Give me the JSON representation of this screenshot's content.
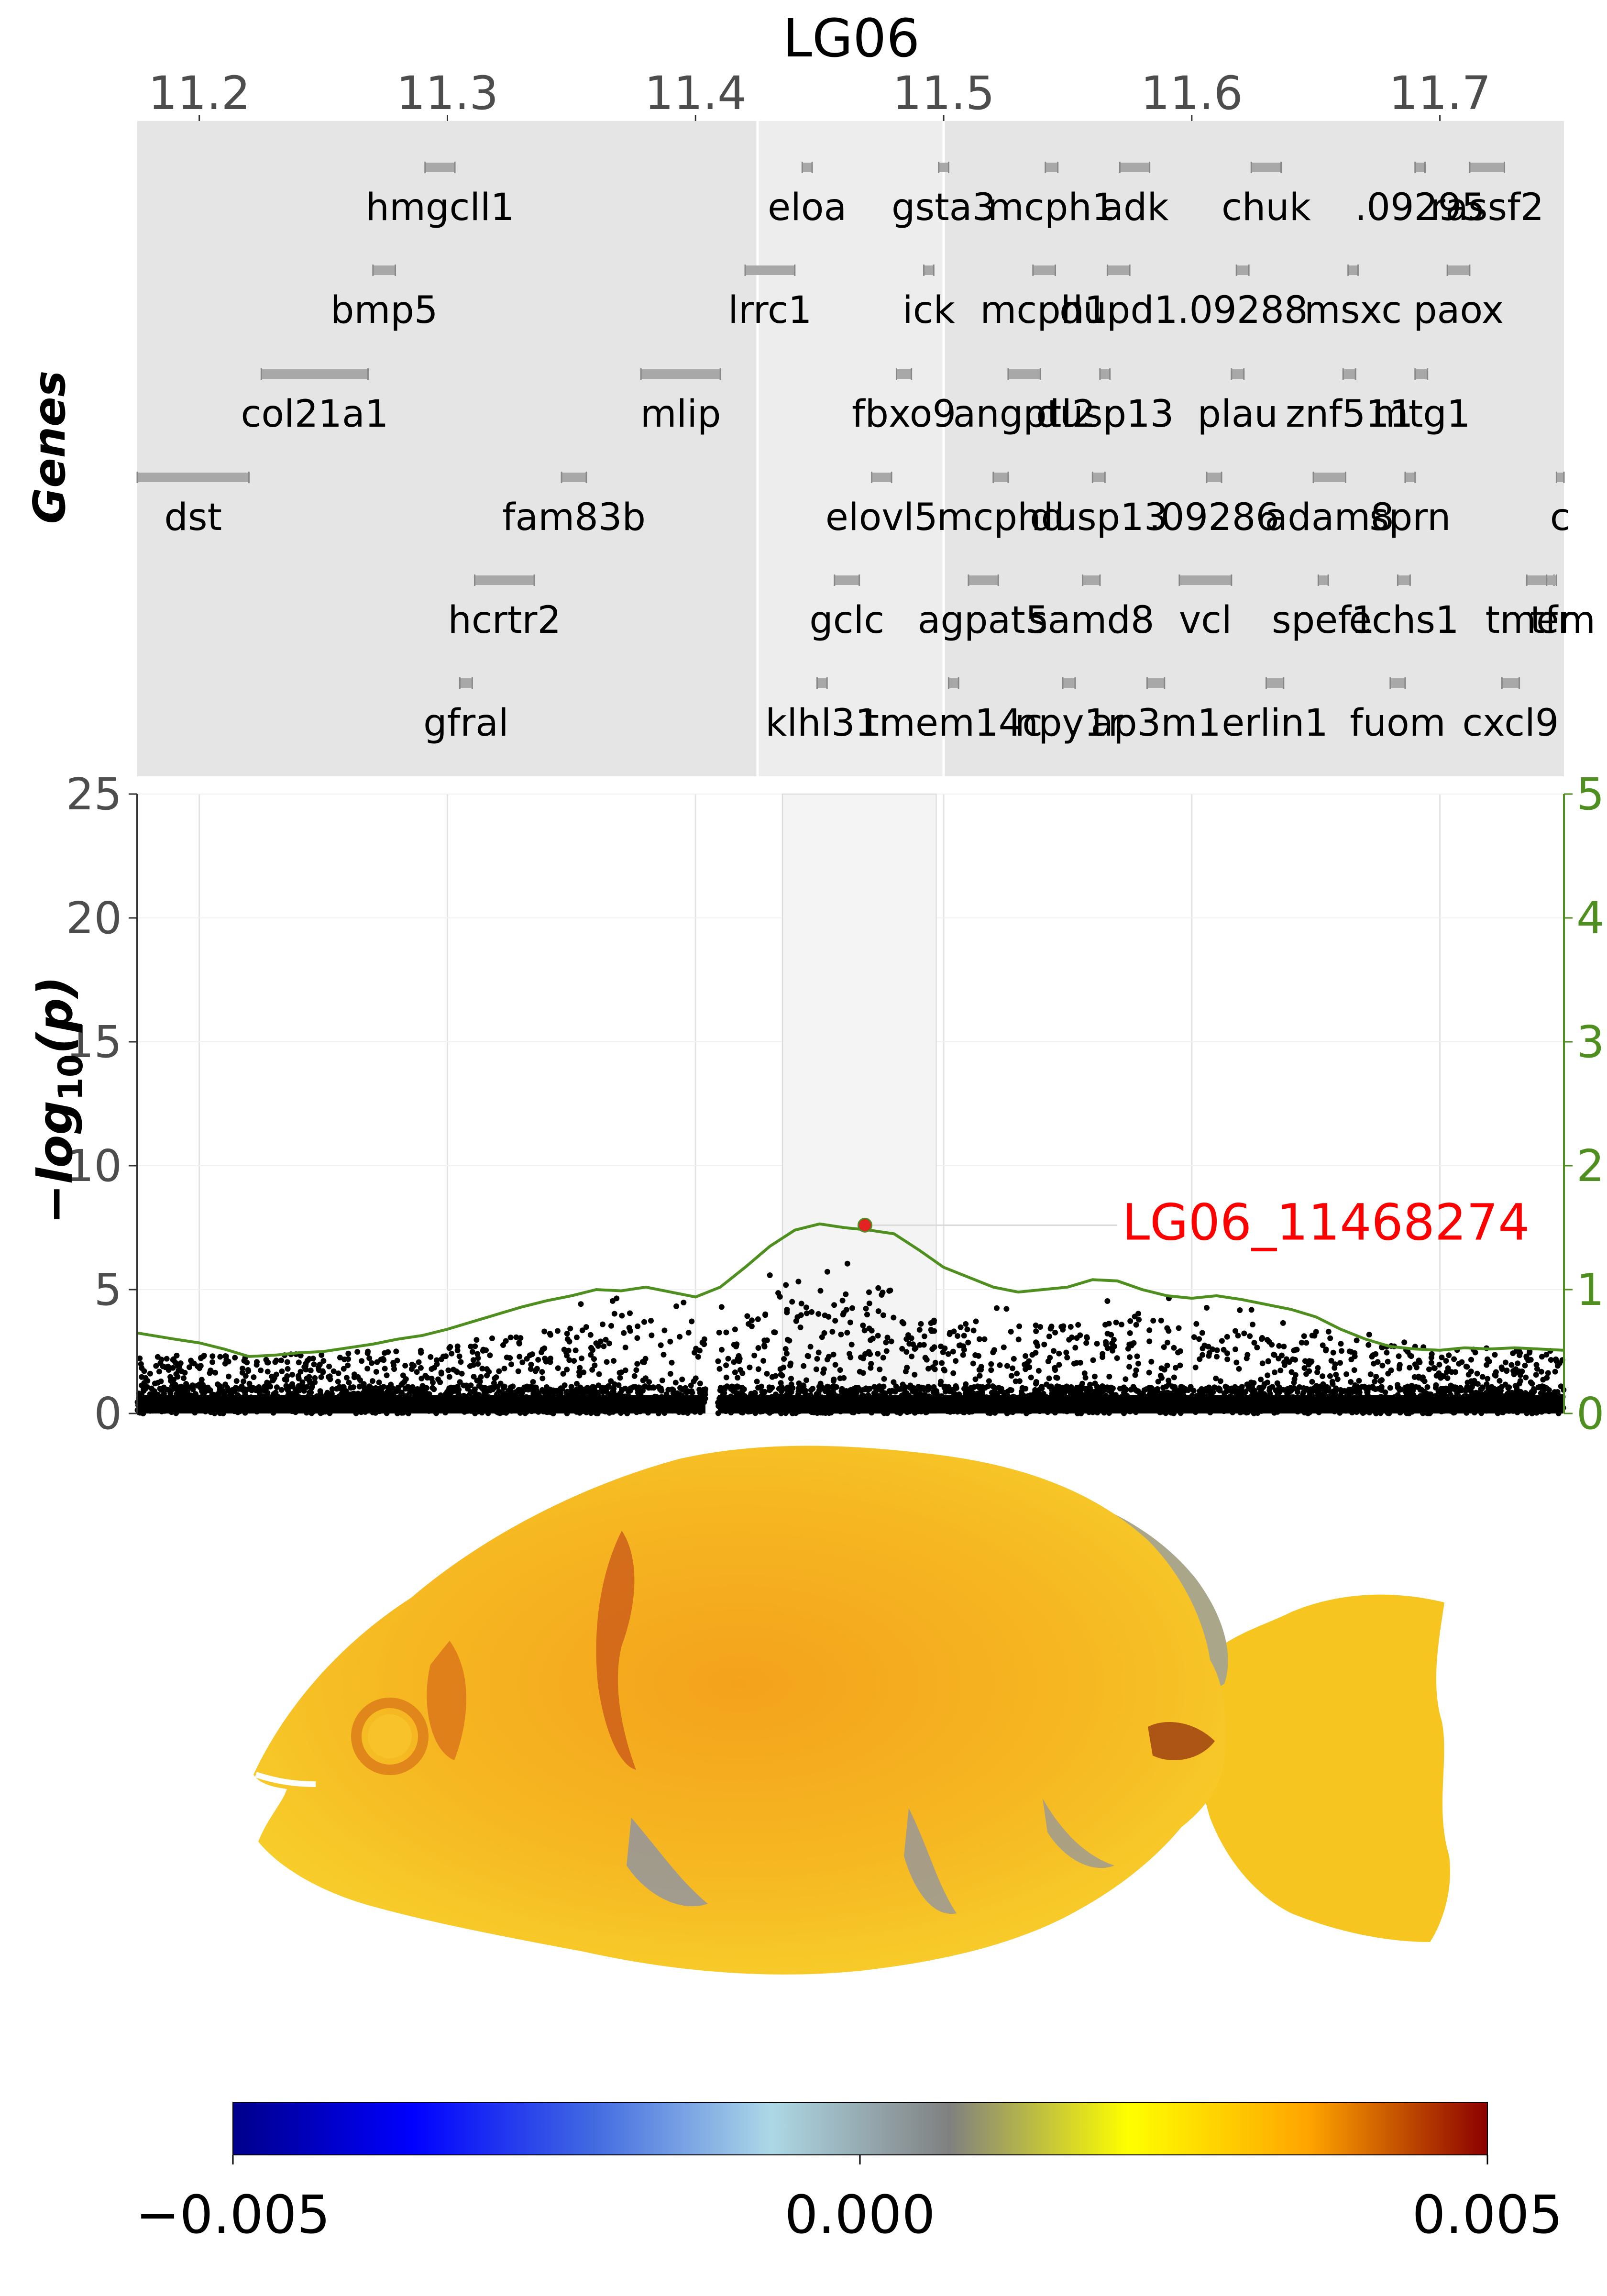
{
  "figure": {
    "chromosome_label": "LG06",
    "genes_axis_label": "Genes",
    "ylabel": "−log10(p)",
    "ylabel_parts": {
      "prefix": "−",
      "main": "log",
      "sub": "10",
      "paren": "(p)"
    },
    "top_axis_ticks": [
      "11.2",
      "11.3",
      "11.4",
      "11.5",
      "11.6",
      "11.7"
    ],
    "colorbar": {
      "min_label": "−0.005",
      "mid_label": "0.000",
      "max_label": "0.005",
      "stops": [
        "#00008B",
        "#0000FF",
        "#4169E1",
        "#ADD8E6",
        "#808080",
        "#FFFF00",
        "#FFA500",
        "#8B0000"
      ]
    }
  },
  "chart_data": [
    {
      "type": "gene-track",
      "xlim": [
        11.175,
        11.75
      ],
      "x_unit": "Mb",
      "genes": [
        {
          "name": "dst",
          "x": [
            11.175,
            11.22
          ],
          "row": 3
        },
        {
          "name": "col21a1",
          "x": [
            11.225,
            11.268
          ],
          "row": 2
        },
        {
          "name": "bmp5",
          "x": [
            11.27,
            11.279
          ],
          "row": 1
        },
        {
          "name": "hmgcll1",
          "x": [
            11.291,
            11.303
          ],
          "row": 0
        },
        {
          "name": "gfral",
          "x": [
            11.305,
            11.31
          ],
          "row": 5
        },
        {
          "name": "hcrtr2",
          "x": [
            11.311,
            11.335
          ],
          "row": 4
        },
        {
          "name": "fam83b",
          "x": [
            11.346,
            11.356
          ],
          "row": 3
        },
        {
          "name": "mlip",
          "x": [
            11.378,
            11.41
          ],
          "row": 2
        },
        {
          "name": "lrrc1",
          "x": [
            11.42,
            11.44
          ],
          "row": 1
        },
        {
          "name": "eloa",
          "x": [
            11.443,
            11.447
          ],
          "row": 0
        },
        {
          "name": "klhl31",
          "x": [
            11.449,
            11.453
          ],
          "row": 5
        },
        {
          "name": "gclc",
          "x": [
            11.456,
            11.466
          ],
          "row": 4
        },
        {
          "name": "elovl5",
          "x": [
            11.471,
            11.479
          ],
          "row": 3
        },
        {
          "name": "fbxo9",
          "x": [
            11.481,
            11.487
          ],
          "row": 2
        },
        {
          "name": "ick",
          "x": [
            11.492,
            11.496
          ],
          "row": 1
        },
        {
          "name": "gsta3",
          "x": [
            11.498,
            11.502
          ],
          "row": 0
        },
        {
          "name": "tmem14c",
          "x": [
            11.502,
            11.506
          ],
          "row": 5
        },
        {
          "name": "agpat5",
          "x": [
            11.51,
            11.522
          ],
          "row": 4
        },
        {
          "name": "mcphd",
          "x": [
            11.52,
            11.526
          ],
          "row": 3
        },
        {
          "name": "angptl2",
          "x": [
            11.526,
            11.539
          ],
          "row": 2
        },
        {
          "name": "mcph1",
          "x": [
            11.536,
            11.545
          ],
          "row": 1
        },
        {
          "name": "mcph1",
          "x": [
            11.541,
            11.546
          ],
          "row": 0
        },
        {
          "name": "npy1r",
          "x": [
            11.548,
            11.553
          ],
          "row": 5
        },
        {
          "name": "samd8",
          "x": [
            11.556,
            11.563
          ],
          "row": 4
        },
        {
          "name": "dusp13",
          "x": [
            11.56,
            11.565
          ],
          "row": 3
        },
        {
          "name": "dusp13",
          "x": [
            11.563,
            11.567
          ],
          "row": 2
        },
        {
          "name": "dupd1",
          "x": [
            11.566,
            11.575
          ],
          "row": 1
        },
        {
          "name": "adk",
          "x": [
            11.571,
            11.583
          ],
          "row": 0
        },
        {
          "name": "ap3m1",
          "x": [
            11.582,
            11.589
          ],
          "row": 5
        },
        {
          "name": "vcl",
          "x": [
            11.595,
            11.616
          ],
          "row": 4
        },
        {
          "name": ".09286",
          "x": [
            11.606,
            11.612
          ],
          "row": 3
        },
        {
          "name": "plau",
          "x": [
            11.616,
            11.621
          ],
          "row": 2
        },
        {
          "name": ".09288",
          "x": [
            11.618,
            11.623
          ],
          "row": 1
        },
        {
          "name": "chuk",
          "x": [
            11.624,
            11.636
          ],
          "row": 0
        },
        {
          "name": "erlin1",
          "x": [
            11.63,
            11.637
          ],
          "row": 5
        },
        {
          "name": "spef1",
          "x": [
            11.651,
            11.655
          ],
          "row": 4
        },
        {
          "name": "adam8",
          "x": [
            11.649,
            11.662
          ],
          "row": 3
        },
        {
          "name": "znf511",
          "x": [
            11.661,
            11.666
          ],
          "row": 2
        },
        {
          "name": "msxc",
          "x": [
            11.663,
            11.667
          ],
          "row": 1
        },
        {
          "name": "fuom",
          "x": [
            11.68,
            11.686
          ],
          "row": 5
        },
        {
          "name": "echs1",
          "x": [
            11.683,
            11.688
          ],
          "row": 4
        },
        {
          "name": "sprn",
          "x": [
            11.686,
            11.69
          ],
          "row": 3
        },
        {
          "name": "mtg1",
          "x": [
            11.69,
            11.695
          ],
          "row": 2
        },
        {
          "name": ".09295",
          "x": [
            11.69,
            11.694
          ],
          "row": 0
        },
        {
          "name": "paox",
          "x": [
            11.703,
            11.712
          ],
          "row": 1
        },
        {
          "name": "rassf2",
          "x": [
            11.712,
            11.726
          ],
          "row": 0
        },
        {
          "name": "cxcl9",
          "x": [
            11.725,
            11.732
          ],
          "row": 5
        },
        {
          "name": "tmem",
          "x": [
            11.735,
            11.746
          ],
          "row": 4
        },
        {
          "name": "c",
          "x": [
            11.747,
            11.75
          ],
          "row": 3
        },
        {
          "name": "tfr",
          "x": [
            11.743,
            11.747
          ],
          "row": 4
        }
      ],
      "highlight_region": [
        11.425,
        11.5
      ]
    },
    {
      "type": "scatter",
      "title": "LG06",
      "xlabel": "",
      "ylabel": "−log10(p)",
      "xlim": [
        11.175,
        11.75
      ],
      "ylim": [
        0,
        25
      ],
      "y_ticks": [
        0,
        5,
        10,
        15,
        20,
        25
      ],
      "y2lim": [
        0,
        5
      ],
      "y2_ticks": [
        0,
        1,
        2,
        3,
        4,
        5
      ],
      "grid": true,
      "highlight_region": [
        11.435,
        11.497
      ],
      "lead_snp": {
        "label": "LG06_11468274",
        "x": 11.468274,
        "y": 7.6
      },
      "density_profile": {
        "description": "noise-floor envelope of SNP −log10(p) values across the region",
        "x": [
          11.175,
          11.2,
          11.22,
          11.24,
          11.26,
          11.28,
          11.3,
          11.32,
          11.34,
          11.36,
          11.38,
          11.395,
          11.405,
          11.42,
          11.43,
          11.44,
          11.45,
          11.46,
          11.47,
          11.48,
          11.49,
          11.5,
          11.52,
          11.54,
          11.56,
          11.58,
          11.6,
          11.62,
          11.64,
          11.66,
          11.68,
          11.7,
          11.72,
          11.75
        ],
        "y": [
          2.2,
          2.3,
          2.2,
          2.4,
          2.5,
          2.8,
          3.2,
          3.6,
          4.1,
          4.6,
          4.9,
          5.0,
          4.4,
          5.0,
          5.6,
          5.8,
          6.2,
          6.8,
          6.4,
          5.5,
          5.0,
          4.8,
          4.6,
          4.5,
          4.7,
          4.9,
          4.6,
          4.4,
          4.2,
          3.8,
          3.4,
          3.0,
          2.8,
          2.6
        ]
      },
      "series": [
        {
          "name": "",
          "axis": "right",
          "color": "#4F8F1F",
          "x": [
            11.175,
            11.19,
            11.2,
            11.21,
            11.22,
            11.23,
            11.24,
            11.25,
            11.26,
            11.27,
            11.28,
            11.29,
            11.3,
            11.31,
            11.32,
            11.33,
            11.34,
            11.35,
            11.36,
            11.37,
            11.38,
            11.39,
            11.4,
            11.41,
            11.42,
            11.43,
            11.44,
            11.45,
            11.46,
            11.47,
            11.48,
            11.49,
            11.5,
            11.51,
            11.52,
            11.53,
            11.54,
            11.55,
            11.56,
            11.57,
            11.58,
            11.59,
            11.6,
            11.61,
            11.62,
            11.63,
            11.64,
            11.65,
            11.66,
            11.67,
            11.68,
            11.69,
            11.7,
            11.71,
            11.72,
            11.73,
            11.74,
            11.75
          ],
          "y": [
            0.65,
            0.6,
            0.57,
            0.52,
            0.46,
            0.47,
            0.49,
            0.5,
            0.53,
            0.56,
            0.6,
            0.63,
            0.68,
            0.74,
            0.8,
            0.86,
            0.91,
            0.95,
            1.0,
            0.99,
            1.02,
            0.98,
            0.94,
            1.02,
            1.18,
            1.35,
            1.48,
            1.53,
            1.5,
            1.48,
            1.45,
            1.32,
            1.18,
            1.1,
            1.02,
            0.98,
            1.0,
            1.02,
            1.08,
            1.07,
            1.0,
            0.95,
            0.93,
            0.95,
            0.92,
            0.88,
            0.84,
            0.78,
            0.68,
            0.6,
            0.54,
            0.52,
            0.51,
            0.53,
            0.52,
            0.53,
            0.52,
            0.51
          ]
        }
      ]
    }
  ]
}
